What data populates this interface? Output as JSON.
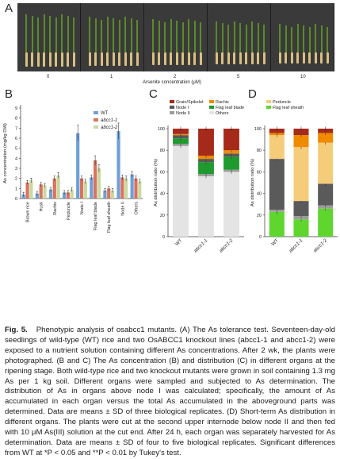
{
  "panels": {
    "a": "A",
    "b": "B",
    "c": "C",
    "d": "D"
  },
  "panelA": {
    "legend_wt": "WT",
    "legend_m2": "abcc1-2",
    "legend_m1": "abcc1-1",
    "concentrations": [
      "0",
      "1",
      "2",
      "5",
      "10"
    ],
    "xlabel": "Arsenite concentration (μM)"
  },
  "panelB": {
    "ylabel": "As concentration (mg/kg DW)",
    "yticks": [
      "0",
      "1",
      "2",
      "3",
      "4",
      "5",
      "6",
      "7",
      "8",
      "9"
    ],
    "legend": [
      "WT",
      "abcc1-1",
      "abcc1-2"
    ],
    "colors": {
      "WT": "#6f9fd8",
      "abcc1-1": "#d9735e",
      "abcc1-2": "#c9d9a0"
    }
  },
  "panelC": {
    "ylabel": "As distribution ratio (%)",
    "yticks": [
      "0",
      "20",
      "40",
      "60",
      "80",
      "100"
    ],
    "categories": [
      "WT",
      "abcc1-1",
      "abcc1-2"
    ],
    "legend": [
      "Grain/Spikelet",
      "Rachis",
      "Node I",
      "Flag leaf blade",
      "Node II",
      "Others"
    ],
    "colors": {
      "Grain/Spikelet": "#a52a1a",
      "Rachis": "#f08a00",
      "Node I": "#5a5a5a",
      "Flag leaf blade": "#1e9a2e",
      "Node II": "#9b9b9b",
      "Others": "#e4e4e4"
    }
  },
  "panelD": {
    "ylabel": "As distribution ratio (%)",
    "yticks": [
      "0",
      "20",
      "40",
      "60",
      "80",
      "100"
    ],
    "categories": [
      "WT",
      "abcc1-1",
      "abcc1-2"
    ],
    "legend": [
      "Peduncle",
      "Flag leaf sheath"
    ],
    "colors": {
      "Peduncle": "#f5cc7a",
      "Flag leaf sheath": "#5ed62e"
    }
  },
  "chart_data": [
    {
      "type": "bar",
      "panel": "B",
      "ylabel": "As concentration (mg/kg DW)",
      "ylim": [
        0,
        9
      ],
      "categories": [
        "Brown rice",
        "Husk",
        "Rachis",
        "Peduncle",
        "Node I",
        "Flag leaf blade",
        "Flag leaf sheath",
        "Node II",
        "Others"
      ],
      "series": [
        {
          "name": "WT",
          "values": [
            0.4,
            0.5,
            0.9,
            0.6,
            6.5,
            2.1,
            0.8,
            6.7,
            2.4
          ]
        },
        {
          "name": "abcc1-1",
          "values": [
            1.6,
            1.4,
            2.0,
            0.6,
            2.0,
            3.8,
            1.0,
            2.1,
            2.0
          ]
        },
        {
          "name": "abcc1-2",
          "values": [
            1.8,
            1.3,
            2.3,
            0.9,
            1.7,
            3.0,
            0.8,
            2.0,
            1.7
          ]
        }
      ]
    },
    {
      "type": "bar",
      "panel": "C",
      "stacked": true,
      "ylabel": "As distribution ratio (%)",
      "ylim": [
        0,
        100
      ],
      "categories": [
        "WT",
        "abcc1-1",
        "abcc1-2"
      ],
      "series": [
        {
          "name": "Others",
          "values": [
            84,
            56,
            60
          ]
        },
        {
          "name": "Node II",
          "values": [
            2,
            2,
            2
          ]
        },
        {
          "name": "Flag leaf blade",
          "values": [
            5,
            11,
            12
          ]
        },
        {
          "name": "Node I",
          "values": [
            3,
            3,
            3
          ]
        },
        {
          "name": "Rachis",
          "values": [
            1,
            3,
            3
          ]
        },
        {
          "name": "Grain/Spikelet",
          "values": [
            5,
            25,
            20
          ]
        }
      ]
    },
    {
      "type": "bar",
      "panel": "D",
      "stacked": true,
      "ylabel": "As distribution ratio (%)",
      "ylim": [
        0,
        100
      ],
      "categories": [
        "WT",
        "abcc1-1",
        "abcc1-2"
      ],
      "series": [
        {
          "name": "Flag leaf sheath",
          "values": [
            23,
            16,
            26
          ]
        },
        {
          "name": "Node II",
          "values": [
            2,
            3,
            3
          ]
        },
        {
          "name": "Node I",
          "values": [
            47,
            14,
            20
          ]
        },
        {
          "name": "Peduncle",
          "values": [
            22,
            50,
            38
          ]
        },
        {
          "name": "Rachis",
          "values": [
            2,
            11,
            9
          ]
        },
        {
          "name": "Grain/Spikelet",
          "values": [
            4,
            6,
            4
          ]
        }
      ]
    }
  ],
  "caption": {
    "fig": "Fig. 5.",
    "title": "Phenotypic analysis of osabcc1 mutants.",
    "body": "(A) The As tolerance test. Seventeen-day-old seedlings of wild-type (WT) rice and two OsABCC1 knockout lines (abcc1-1 and abcc1-2) were exposed to a nutrient solution containing different As concentrations. After 2 wk, the plants were photographed. (B and C) The As concentration (B) and distribution (C) in different organs at the ripening stage. Both wild-type rice and two knockout mutants were grown in soil containing 1.3 mg As per 1 kg soil. Different organs were sampled and subjected to As determination. The distribution of As in organs above node I was calculated; specifically, the amount of As accumulated in each organ versus the total As accumulated in the aboveground parts was determined. Data are means ± SD of three biological replicates. (D) Short-term As distribution in different organs. The plants were cut at the second upper internode below node II and then fed with 10 μM As(III) solution at the cut end. After 24 h, each organ was separately harvested for As determination. Data are means ± SD of four to five biological replicates. Significant differences from WT at *P < 0.05 and **P < 0.01 by Tukey's test."
  }
}
